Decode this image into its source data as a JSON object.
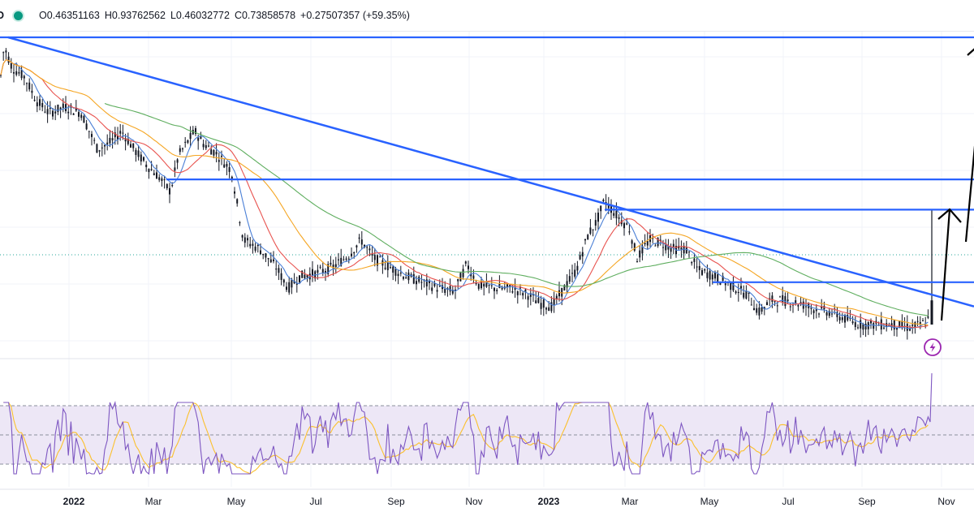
{
  "ohlc": {
    "symbol_fragment": "D",
    "open": "O0.46351163",
    "high": "H0.93762562",
    "low": "L0.46032772",
    "close": "C0.73858578",
    "change": "+0.27507357 (+59.35%)"
  },
  "colors": {
    "candle": "#131722",
    "trendline": "#2962ff",
    "ma_blue": "#4a7fd6",
    "ma_red": "#e8534f",
    "ma_orange": "#f5a623",
    "ma_green": "#5fae5f",
    "rsi_line": "#7e57c2",
    "rsi_signal": "#fbc02d",
    "rsi_band": "#ede7f6",
    "arrow": "#000000",
    "alert_icon": "#9c27b0"
  },
  "chart_data": {
    "type": "candlestick",
    "x_ticks": [
      {
        "label": "2022",
        "bold": true
      },
      {
        "label": "Mar",
        "bold": false
      },
      {
        "label": "May",
        "bold": false
      },
      {
        "label": "Jul",
        "bold": false
      },
      {
        "label": "Sep",
        "bold": false
      },
      {
        "label": "Nov",
        "bold": false
      },
      {
        "label": "2023",
        "bold": true
      },
      {
        "label": "Mar",
        "bold": false
      },
      {
        "label": "May",
        "bold": false
      },
      {
        "label": "Jul",
        "bold": false
      },
      {
        "label": "Sep",
        "bold": false
      },
      {
        "label": "Nov",
        "bold": false
      }
    ],
    "last_open": 0.46351163,
    "last_high": 0.93762562,
    "last_low": 0.46032772,
    "last_close": 0.73858578,
    "price_path": [
      [
        0,
        0.8
      ],
      [
        5,
        0.92
      ],
      [
        15,
        0.85
      ],
      [
        30,
        0.82
      ],
      [
        45,
        0.74
      ],
      [
        60,
        0.7
      ],
      [
        80,
        0.72
      ],
      [
        100,
        0.7
      ],
      [
        120,
        0.58
      ],
      [
        135,
        0.6
      ],
      [
        150,
        0.64
      ],
      [
        165,
        0.58
      ],
      [
        180,
        0.53
      ],
      [
        195,
        0.49
      ],
      [
        210,
        0.44
      ],
      [
        220,
        0.56
      ],
      [
        240,
        0.64
      ],
      [
        250,
        0.6
      ],
      [
        265,
        0.57
      ],
      [
        285,
        0.51
      ],
      [
        300,
        0.28
      ],
      [
        320,
        0.25
      ],
      [
        340,
        0.19
      ],
      [
        355,
        0.12
      ],
      [
        370,
        0.16
      ],
      [
        390,
        0.17
      ],
      [
        410,
        0.19
      ],
      [
        430,
        0.23
      ],
      [
        445,
        0.28
      ],
      [
        460,
        0.22
      ],
      [
        480,
        0.19
      ],
      [
        500,
        0.16
      ],
      [
        520,
        0.14
      ],
      [
        540,
        0.12
      ],
      [
        560,
        0.11
      ],
      [
        575,
        0.2
      ],
      [
        590,
        0.13
      ],
      [
        610,
        0.12
      ],
      [
        630,
        0.12
      ],
      [
        650,
        0.1
      ],
      [
        665,
        0.07
      ],
      [
        680,
        0.06
      ],
      [
        695,
        0.12
      ],
      [
        710,
        0.18
      ],
      [
        725,
        0.3
      ],
      [
        735,
        0.34
      ],
      [
        745,
        0.41
      ],
      [
        760,
        0.36
      ],
      [
        775,
        0.32
      ],
      [
        785,
        0.22
      ],
      [
        800,
        0.28
      ],
      [
        815,
        0.27
      ],
      [
        830,
        0.25
      ],
      [
        845,
        0.25
      ],
      [
        860,
        0.18
      ],
      [
        880,
        0.16
      ],
      [
        900,
        0.13
      ],
      [
        920,
        0.1
      ],
      [
        935,
        0.04
      ],
      [
        950,
        0.08
      ],
      [
        965,
        0.08
      ],
      [
        985,
        0.07
      ],
      [
        1005,
        0.05
      ],
      [
        1025,
        0.04
      ],
      [
        1040,
        0.02
      ],
      [
        1060,
        0.0
      ],
      [
        1080,
        0.0
      ],
      [
        1100,
        0.0
      ],
      [
        1120,
        -0.01
      ],
      [
        1135,
        0.0
      ],
      [
        1145,
        0.02
      ],
      [
        1148,
        0.08
      ]
    ],
    "horizontal_levels": [
      {
        "from": 0,
        "to": 1200,
        "y": 0.95
      },
      {
        "from": 205,
        "to": 1200,
        "y": 0.48
      },
      {
        "from": 745,
        "to": 1200,
        "y": 0.38
      },
      {
        "from": 878,
        "to": 1200,
        "y": 0.14
      }
    ],
    "trendline": {
      "from": [
        10,
        0.95
      ],
      "to": [
        1200,
        0.06
      ]
    },
    "ma_periods": [
      "fast",
      "mid",
      "slow",
      "long"
    ],
    "rsi": {
      "upper": 70,
      "mid": 50,
      "lower": 30
    }
  }
}
